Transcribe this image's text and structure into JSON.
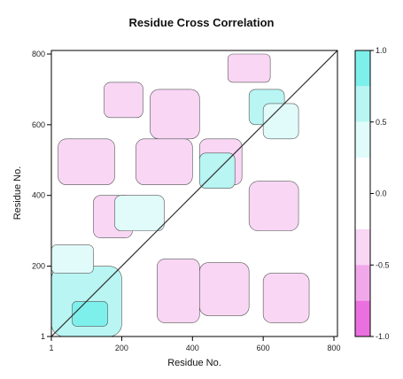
{
  "chart_data": {
    "type": "heatmap",
    "title": "Residue Cross Correlation",
    "xlabel": "Residue No.",
    "ylabel": "Residue No.",
    "x_range": [
      1,
      810
    ],
    "y_range": [
      1,
      810
    ],
    "x_ticks": [
      "1",
      "200",
      "400",
      "600",
      "800"
    ],
    "y_ticks": [
      "1",
      "200",
      "400",
      "600",
      "800"
    ],
    "colorbar": {
      "range": [
        -1.0,
        1.0
      ],
      "tick_labels": [
        "1.0",
        "0.5",
        "0.0",
        "-0.5",
        "-1.0"
      ],
      "bands": [
        {
          "from": 0.75,
          "to": 1.0,
          "color": "#7ef0ec"
        },
        {
          "from": 0.5,
          "to": 0.75,
          "color": "#b8f5f3"
        },
        {
          "from": 0.25,
          "to": 0.5,
          "color": "#e0fbfa"
        },
        {
          "from": -0.25,
          "to": 0.25,
          "color": "#ffffff"
        },
        {
          "from": -0.5,
          "to": -0.25,
          "color": "#f8d6f4"
        },
        {
          "from": -0.75,
          "to": -0.5,
          "color": "#f1a8ea"
        },
        {
          "from": -1.0,
          "to": -0.75,
          "color": "#ea70e0"
        }
      ]
    },
    "regions": [
      {
        "x": [
          1,
          810
        ],
        "y": [
          1,
          810
        ],
        "value": 0.0
      },
      {
        "x": [
          280,
          420
        ],
        "y": [
          560,
          700
        ],
        "value": -0.4
      },
      {
        "x": [
          20,
          180
        ],
        "y": [
          430,
          560
        ],
        "value": -0.45
      },
      {
        "x": [
          240,
          400
        ],
        "y": [
          430,
          560
        ],
        "value": -0.35
      },
      {
        "x": [
          420,
          540
        ],
        "y": [
          430,
          560
        ],
        "value": -0.3
      },
      {
        "x": [
          560,
          700
        ],
        "y": [
          300,
          440
        ],
        "value": -0.35
      },
      {
        "x": [
          300,
          420
        ],
        "y": [
          40,
          220
        ],
        "value": -0.4
      },
      {
        "x": [
          420,
          560
        ],
        "y": [
          60,
          210
        ],
        "value": -0.3
      },
      {
        "x": [
          600,
          730
        ],
        "y": [
          40,
          180
        ],
        "value": -0.3
      },
      {
        "x": [
          120,
          230
        ],
        "y": [
          280,
          400
        ],
        "value": -0.35
      },
      {
        "x": [
          150,
          260
        ],
        "y": [
          620,
          720
        ],
        "value": -0.3
      },
      {
        "x": [
          500,
          620
        ],
        "y": [
          720,
          800
        ],
        "value": -0.3
      },
      {
        "x": [
          560,
          660
        ],
        "y": [
          600,
          700
        ],
        "value": 0.5
      },
      {
        "x": [
          420,
          520
        ],
        "y": [
          420,
          520
        ],
        "value": 0.55
      },
      {
        "x": [
          180,
          320
        ],
        "y": [
          300,
          400
        ],
        "value": 0.45
      },
      {
        "x": [
          1,
          200
        ],
        "y": [
          1,
          200
        ],
        "value": 0.5
      },
      {
        "x": [
          600,
          700
        ],
        "y": [
          560,
          660
        ],
        "value": 0.4
      },
      {
        "x": [
          1,
          120
        ],
        "y": [
          180,
          260
        ],
        "value": 0.4
      },
      {
        "x": [
          60,
          160
        ],
        "y": [
          30,
          100
        ],
        "value": 0.8
      }
    ]
  }
}
